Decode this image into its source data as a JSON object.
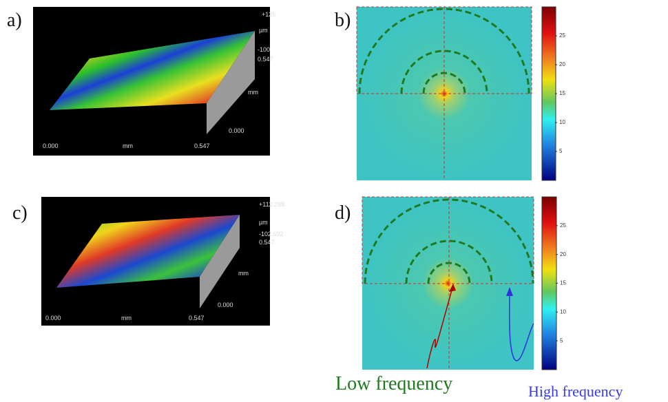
{
  "panels": [
    {
      "label": "a)",
      "axis_labels": {
        "z_max": "+126",
        "z_unit": "µm",
        "z_min": "-100",
        "y_max": "0.547",
        "y_unit": "mm",
        "y_min": "0.000",
        "x_min": "0.000",
        "x_unit": "mm",
        "x_max": "0.547"
      }
    },
    {
      "label": "b)",
      "colorbar_ticks": [
        5,
        10,
        15,
        20,
        25
      ]
    },
    {
      "label": "c)",
      "axis_labels": {
        "z_max": "+112.288",
        "z_unit": "µm",
        "z_min": "-102.692",
        "y_max": "0.547",
        "y_unit": "mm",
        "y_min": "0.000",
        "x_min": "0.000",
        "x_unit": "mm",
        "x_max": "0.547"
      }
    },
    {
      "label": "d)",
      "colorbar_ticks": [
        5,
        10,
        15,
        20,
        25
      ]
    }
  ],
  "annotations": {
    "low_frequency": "Low frequency",
    "high_frequency": "High frequency"
  }
}
